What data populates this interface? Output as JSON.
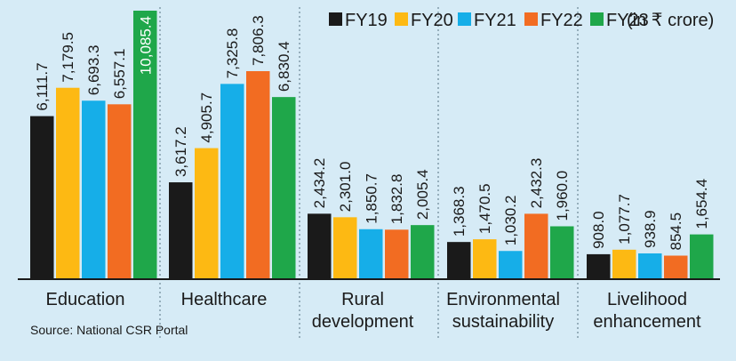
{
  "chart_data": {
    "type": "bar",
    "categories": [
      [
        "Education"
      ],
      [
        "Healthcare"
      ],
      [
        "Rural",
        "development"
      ],
      [
        "Environmental",
        "sustainability"
      ],
      [
        "Livelihood",
        "enhancement"
      ]
    ],
    "series": [
      {
        "name": "FY19",
        "color": "#1a1a1a",
        "values": [
          6111.7,
          3617.2,
          2434.2,
          1368.3,
          908.0
        ],
        "labels": [
          "6,111.7",
          "3,617.2",
          "2,434.2",
          "1,368.3",
          "908.0"
        ]
      },
      {
        "name": "FY20",
        "color": "#fdb913",
        "values": [
          7179.5,
          4905.7,
          2301.0,
          1470.5,
          1077.7
        ],
        "labels": [
          "7,179.5",
          "4,905.7",
          "2,301.0",
          "1,470.5",
          "1,077.7"
        ]
      },
      {
        "name": "FY21",
        "color": "#16aee8",
        "values": [
          6693.3,
          7325.8,
          1850.7,
          1030.2,
          938.9
        ],
        "labels": [
          "6,693.3",
          "7,325.8",
          "1,850.7",
          "1,030.2",
          "938.9"
        ]
      },
      {
        "name": "FY22",
        "color": "#f26c22",
        "values": [
          6557.1,
          7806.3,
          1832.8,
          2432.3,
          854.5
        ],
        "labels": [
          "6,557.1",
          "7,806.3",
          "1,832.8",
          "2,432.3",
          "854.5"
        ]
      },
      {
        "name": "FY23",
        "color": "#1fa74a",
        "values": [
          10085.4,
          6830.4,
          2005.4,
          1960.0,
          1654.4
        ],
        "labels": [
          "10,085.4",
          "6,830.4",
          "2,005.4",
          "1,960.0",
          "1,654.4"
        ]
      }
    ],
    "unit_note": "(in ₹ crore)",
    "ylim": [
      0,
      10085.4
    ],
    "legend_position": "top-right",
    "grid": false,
    "source": "Source: National CSR Portal"
  }
}
